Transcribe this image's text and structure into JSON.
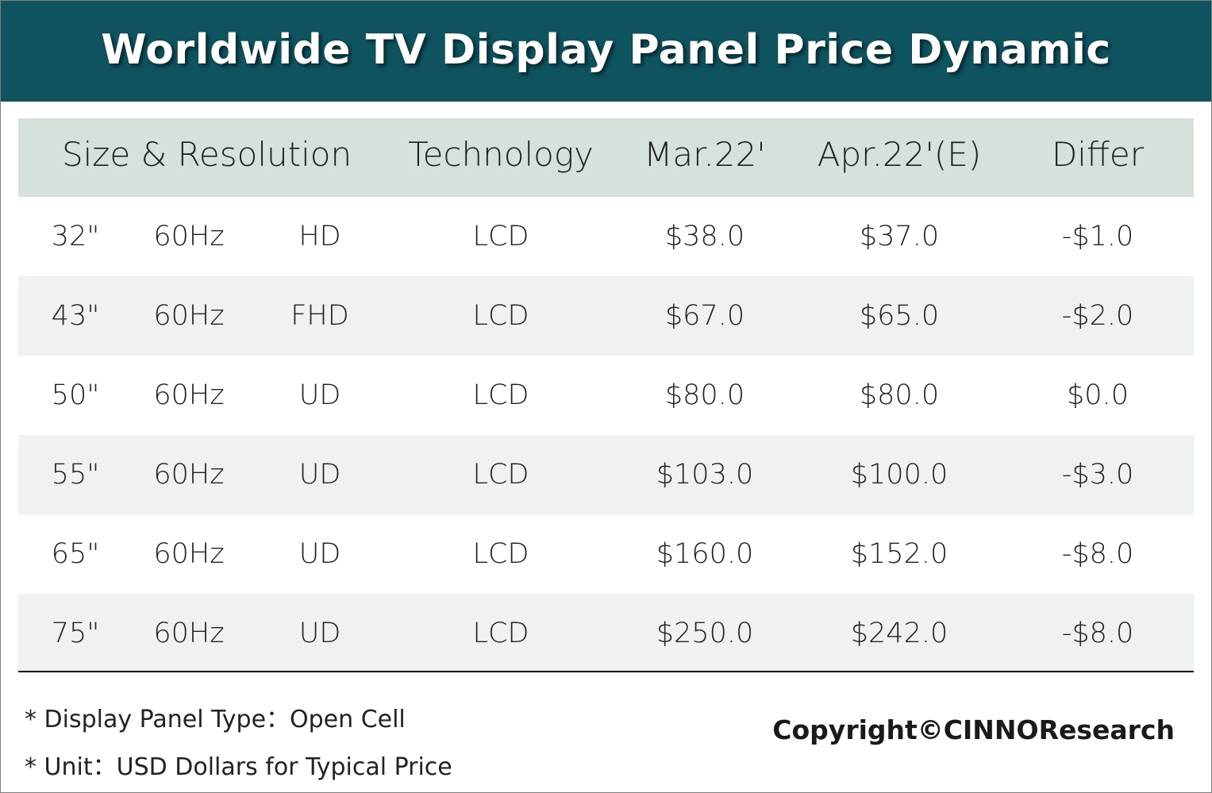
{
  "title": "Worldwide TV Display Panel Price Dynamic",
  "chart_data": {
    "type": "table",
    "title": "Worldwide TV Display Panel Price Dynamic",
    "columns": [
      "Size & Resolution",
      "Technology",
      "Mar.22'",
      "Apr.22'(E)",
      "Differ"
    ],
    "rows": [
      {
        "size": "32\"",
        "refresh": "60Hz",
        "resolution": "HD",
        "technology": "LCD",
        "mar": "$38.0",
        "apr": "$37.0",
        "differ": "-$1.0"
      },
      {
        "size": "43\"",
        "refresh": "60Hz",
        "resolution": "FHD",
        "technology": "LCD",
        "mar": "$67.0",
        "apr": "$65.0",
        "differ": "-$2.0"
      },
      {
        "size": "50\"",
        "refresh": "60Hz",
        "resolution": "UD",
        "technology": "LCD",
        "mar": "$80.0",
        "apr": "$80.0",
        "differ": "$0.0"
      },
      {
        "size": "55\"",
        "refresh": "60Hz",
        "resolution": "UD",
        "technology": "LCD",
        "mar": "$103.0",
        "apr": "$100.0",
        "differ": "-$3.0"
      },
      {
        "size": "65\"",
        "refresh": "60Hz",
        "resolution": "UD",
        "technology": "LCD",
        "mar": "$160.0",
        "apr": "$152.0",
        "differ": "-$8.0"
      },
      {
        "size": "75\"",
        "refresh": "60Hz",
        "resolution": "UD",
        "technology": "LCD",
        "mar": "$250.0",
        "apr": "$242.0",
        "differ": "-$8.0"
      }
    ]
  },
  "notes": [
    "* Display Panel Type：Open Cell",
    "* Unit：USD Dollars for Typical Price"
  ],
  "copyright": "Copyright©CINNOResearch",
  "colors": {
    "title_bar": "#0e535e",
    "header_row": "#d6e1da",
    "shaded_row": "#eef3ef"
  }
}
